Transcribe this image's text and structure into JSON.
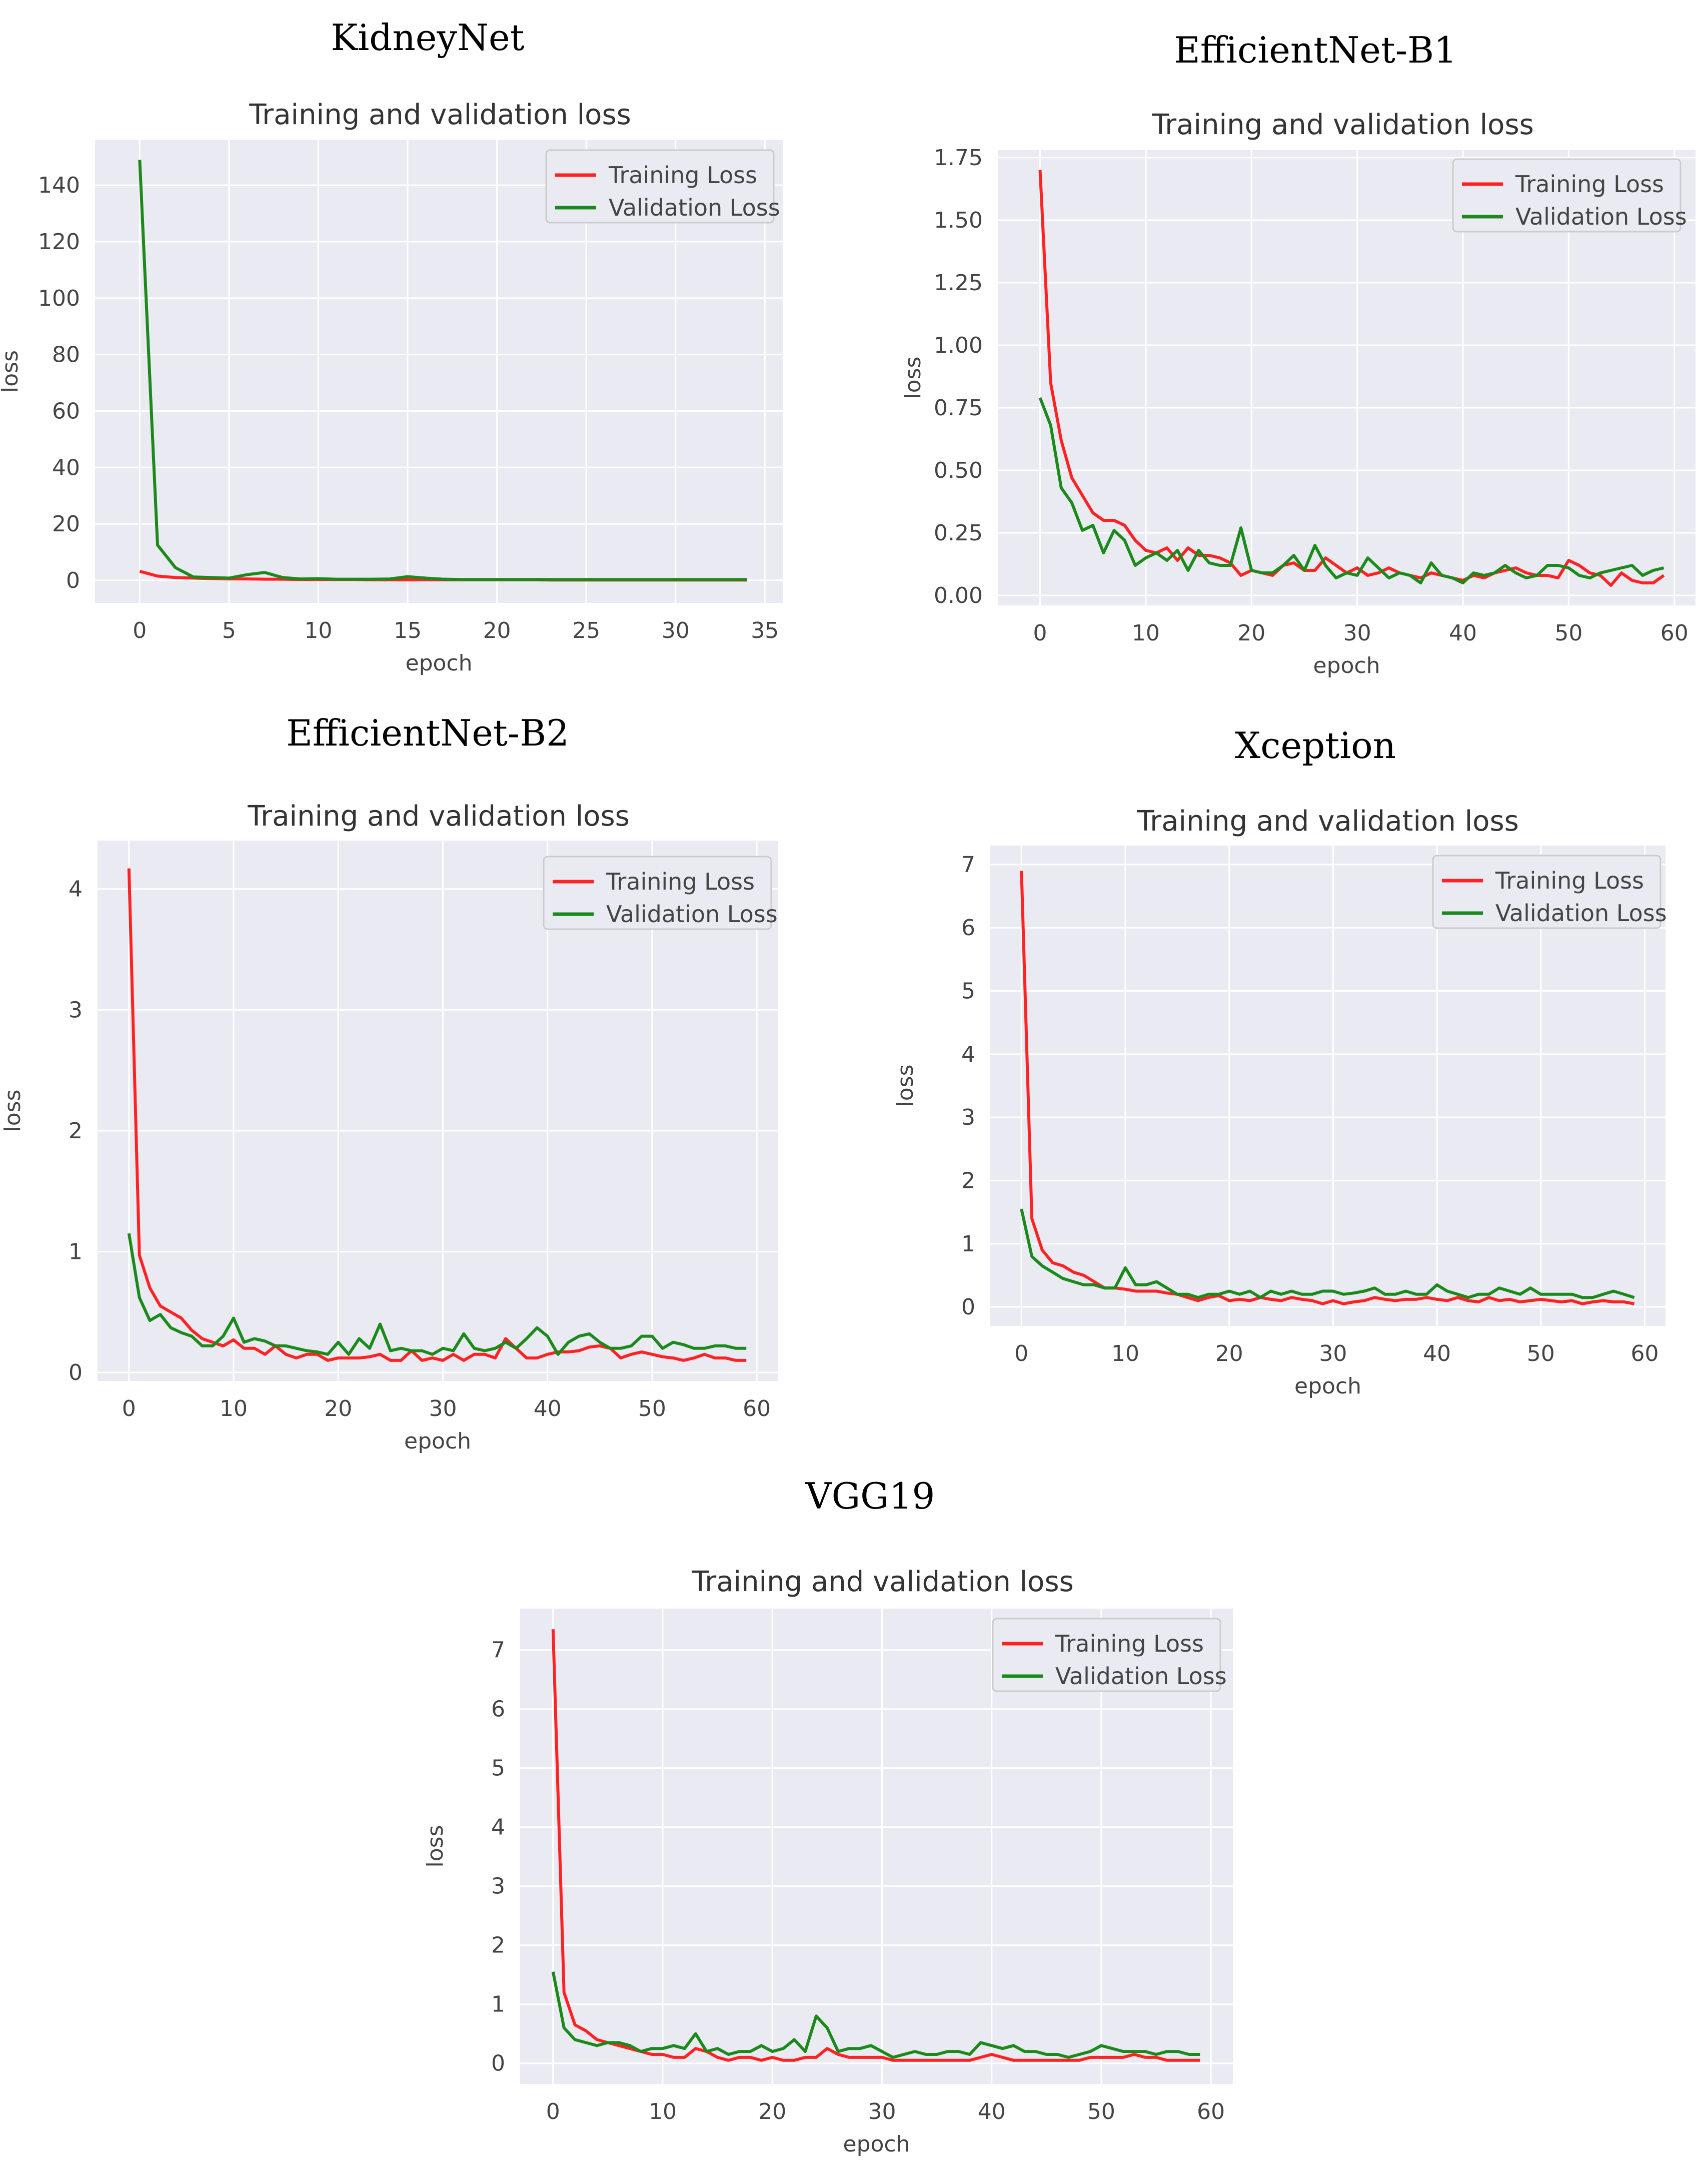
{
  "colors": {
    "training": "#ff2222",
    "validation": "#1a8a1a",
    "plot_bg": "#eaeaf2"
  },
  "chart_data": [
    {
      "type": "line",
      "model_title": "KidneyNet",
      "title": "Training and validation loss",
      "xlabel": "epoch",
      "ylabel": "loss",
      "xlim": [
        -2.5,
        36
      ],
      "ylim": [
        -8,
        156
      ],
      "xticks": [
        0,
        5,
        10,
        15,
        20,
        25,
        30,
        35
      ],
      "yticks": [
        0,
        20,
        40,
        60,
        80,
        100,
        120,
        140
      ],
      "tick_labels_x": [
        "0",
        "5",
        "10",
        "15",
        "20",
        "25",
        "30",
        "35"
      ],
      "tick_labels_y": [
        "0",
        "20",
        "40",
        "60",
        "80",
        "100",
        "120",
        "140"
      ],
      "legend": [
        "Training Loss",
        "Validation Loss"
      ],
      "series": [
        {
          "name": "Training Loss",
          "values": [
            3.2,
            1.5,
            1.0,
            0.8,
            0.6,
            0.5,
            0.5,
            0.4,
            0.4,
            0.3,
            0.3,
            0.3,
            0.3,
            0.2,
            0.2,
            0.2,
            0.2,
            0.2,
            0.2,
            0.2,
            0.2,
            0.2,
            0.2,
            0.1,
            0.1,
            0.1,
            0.1,
            0.1,
            0.1,
            0.1,
            0.1,
            0.1,
            0.1,
            0.1,
            0.1
          ]
        },
        {
          "name": "Validation Loss",
          "values": [
            149,
            12.5,
            4.5,
            1.2,
            1.0,
            0.8,
            2.0,
            2.8,
            1.0,
            0.5,
            0.6,
            0.4,
            0.4,
            0.4,
            0.5,
            1.3,
            0.8,
            0.4,
            0.3,
            0.3,
            0.3,
            0.3,
            0.3,
            0.3,
            0.3,
            0.3,
            0.3,
            0.3,
            0.3,
            0.3,
            0.3,
            0.3,
            0.3,
            0.3,
            0.3
          ]
        }
      ]
    },
    {
      "type": "line",
      "model_title": "EfficientNet-B1",
      "title": "Training and validation loss",
      "xlabel": "epoch",
      "ylabel": "loss",
      "xlim": [
        -4,
        62
      ],
      "ylim": [
        -0.04,
        1.78
      ],
      "xticks": [
        0,
        10,
        20,
        30,
        40,
        50,
        60
      ],
      "yticks": [
        0.0,
        0.25,
        0.5,
        0.75,
        1.0,
        1.25,
        1.5,
        1.75
      ],
      "tick_labels_x": [
        "0",
        "10",
        "20",
        "30",
        "40",
        "50",
        "60"
      ],
      "tick_labels_y": [
        "0.00",
        "0.25",
        "0.50",
        "0.75",
        "1.00",
        "1.25",
        "1.50",
        "1.75"
      ],
      "legend": [
        "Training Loss",
        "Validation Loss"
      ],
      "series": [
        {
          "name": "Training Loss",
          "values": [
            1.7,
            0.85,
            0.62,
            0.47,
            0.4,
            0.33,
            0.3,
            0.3,
            0.28,
            0.22,
            0.18,
            0.17,
            0.19,
            0.14,
            0.19,
            0.16,
            0.16,
            0.15,
            0.13,
            0.08,
            0.1,
            0.09,
            0.08,
            0.12,
            0.13,
            0.1,
            0.1,
            0.15,
            0.12,
            0.09,
            0.11,
            0.08,
            0.09,
            0.11,
            0.09,
            0.08,
            0.07,
            0.09,
            0.08,
            0.07,
            0.06,
            0.08,
            0.07,
            0.09,
            0.1,
            0.11,
            0.09,
            0.08,
            0.08,
            0.07,
            0.14,
            0.12,
            0.09,
            0.08,
            0.04,
            0.09,
            0.06,
            0.05,
            0.05,
            0.08
          ]
        },
        {
          "name": "Validation Loss",
          "values": [
            0.79,
            0.68,
            0.43,
            0.37,
            0.26,
            0.28,
            0.17,
            0.26,
            0.22,
            0.12,
            0.15,
            0.17,
            0.14,
            0.18,
            0.1,
            0.18,
            0.13,
            0.12,
            0.12,
            0.27,
            0.1,
            0.09,
            0.09,
            0.12,
            0.16,
            0.1,
            0.2,
            0.12,
            0.07,
            0.09,
            0.08,
            0.15,
            0.11,
            0.07,
            0.09,
            0.08,
            0.05,
            0.13,
            0.08,
            0.07,
            0.05,
            0.09,
            0.08,
            0.09,
            0.12,
            0.09,
            0.07,
            0.08,
            0.12,
            0.12,
            0.11,
            0.08,
            0.07,
            0.09,
            0.1,
            0.11,
            0.12,
            0.08,
            0.1,
            0.11
          ]
        }
      ]
    },
    {
      "type": "line",
      "model_title": "EfficientNet-B2",
      "title": "Training and validation loss",
      "xlabel": "epoch",
      "ylabel": "loss",
      "xlim": [
        -3,
        62
      ],
      "ylim": [
        -0.07,
        4.4
      ],
      "xticks": [
        0,
        10,
        20,
        30,
        40,
        50,
        60
      ],
      "yticks": [
        0,
        1,
        2,
        3,
        4
      ],
      "tick_labels_x": [
        "0",
        "10",
        "20",
        "30",
        "40",
        "50",
        "60"
      ],
      "tick_labels_y": [
        "0",
        "1",
        "2",
        "3",
        "4"
      ],
      "legend": [
        "Training Loss",
        "Validation Loss"
      ],
      "series": [
        {
          "name": "Training Loss",
          "values": [
            4.17,
            0.97,
            0.7,
            0.55,
            0.5,
            0.45,
            0.35,
            0.28,
            0.25,
            0.22,
            0.27,
            0.2,
            0.2,
            0.15,
            0.22,
            0.15,
            0.12,
            0.15,
            0.15,
            0.1,
            0.12,
            0.12,
            0.12,
            0.13,
            0.15,
            0.1,
            0.1,
            0.18,
            0.1,
            0.12,
            0.1,
            0.15,
            0.1,
            0.15,
            0.15,
            0.12,
            0.28,
            0.2,
            0.12,
            0.12,
            0.15,
            0.17,
            0.17,
            0.18,
            0.21,
            0.22,
            0.2,
            0.12,
            0.15,
            0.17,
            0.15,
            0.13,
            0.12,
            0.1,
            0.12,
            0.15,
            0.12,
            0.12,
            0.1,
            0.1
          ]
        },
        {
          "name": "Validation Loss",
          "values": [
            1.15,
            0.62,
            0.43,
            0.48,
            0.37,
            0.33,
            0.3,
            0.22,
            0.22,
            0.3,
            0.45,
            0.25,
            0.28,
            0.26,
            0.22,
            0.22,
            0.2,
            0.18,
            0.17,
            0.15,
            0.25,
            0.15,
            0.28,
            0.2,
            0.4,
            0.18,
            0.2,
            0.18,
            0.18,
            0.15,
            0.2,
            0.18,
            0.32,
            0.2,
            0.18,
            0.2,
            0.25,
            0.2,
            0.28,
            0.37,
            0.3,
            0.15,
            0.25,
            0.3,
            0.32,
            0.25,
            0.2,
            0.2,
            0.22,
            0.3,
            0.3,
            0.2,
            0.25,
            0.23,
            0.2,
            0.2,
            0.22,
            0.22,
            0.2,
            0.2
          ]
        }
      ]
    },
    {
      "type": "line",
      "model_title": "Xception",
      "title": "Training and validation loss",
      "xlabel": "epoch",
      "ylabel": "loss",
      "xlim": [
        -3,
        62
      ],
      "ylim": [
        -0.3,
        7.3
      ],
      "xticks": [
        0,
        10,
        20,
        30,
        40,
        50,
        60
      ],
      "yticks": [
        0,
        1,
        2,
        3,
        4,
        5,
        6,
        7
      ],
      "tick_labels_x": [
        "0",
        "10",
        "20",
        "30",
        "40",
        "50",
        "60"
      ],
      "tick_labels_y": [
        "0",
        "1",
        "2",
        "3",
        "4",
        "5",
        "6",
        "7"
      ],
      "legend": [
        "Training Loss",
        "Validation Loss"
      ],
      "series": [
        {
          "name": "Training Loss",
          "values": [
            6.9,
            1.4,
            0.9,
            0.7,
            0.65,
            0.55,
            0.5,
            0.4,
            0.3,
            0.3,
            0.28,
            0.25,
            0.25,
            0.25,
            0.22,
            0.2,
            0.15,
            0.1,
            0.15,
            0.18,
            0.1,
            0.12,
            0.1,
            0.15,
            0.12,
            0.1,
            0.15,
            0.12,
            0.1,
            0.05,
            0.1,
            0.05,
            0.08,
            0.1,
            0.15,
            0.12,
            0.1,
            0.12,
            0.12,
            0.15,
            0.12,
            0.1,
            0.15,
            0.1,
            0.08,
            0.15,
            0.1,
            0.12,
            0.08,
            0.1,
            0.12,
            0.1,
            0.08,
            0.1,
            0.05,
            0.08,
            0.1,
            0.08,
            0.08,
            0.05
          ]
        },
        {
          "name": "Validation Loss",
          "values": [
            1.55,
            0.8,
            0.65,
            0.55,
            0.45,
            0.4,
            0.35,
            0.35,
            0.3,
            0.3,
            0.62,
            0.35,
            0.35,
            0.4,
            0.3,
            0.2,
            0.2,
            0.15,
            0.2,
            0.2,
            0.25,
            0.2,
            0.25,
            0.15,
            0.25,
            0.2,
            0.25,
            0.2,
            0.2,
            0.25,
            0.25,
            0.2,
            0.22,
            0.25,
            0.3,
            0.2,
            0.2,
            0.25,
            0.2,
            0.2,
            0.35,
            0.25,
            0.2,
            0.15,
            0.2,
            0.2,
            0.3,
            0.25,
            0.2,
            0.3,
            0.2,
            0.2,
            0.2,
            0.2,
            0.15,
            0.15,
            0.2,
            0.25,
            0.2,
            0.15
          ]
        }
      ]
    },
    {
      "type": "line",
      "model_title": "VGG19",
      "title": "Training and validation loss",
      "xlabel": "epoch",
      "ylabel": "loss",
      "xlim": [
        -3,
        62
      ],
      "ylim": [
        -0.35,
        7.7
      ],
      "xticks": [
        0,
        10,
        20,
        30,
        40,
        50,
        60
      ],
      "yticks": [
        0,
        1,
        2,
        3,
        4,
        5,
        6,
        7
      ],
      "tick_labels_x": [
        "0",
        "10",
        "20",
        "30",
        "40",
        "50",
        "60"
      ],
      "tick_labels_y": [
        "0",
        "1",
        "2",
        "3",
        "4",
        "5",
        "6",
        "7"
      ],
      "legend": [
        "Training Loss",
        "Validation Loss"
      ],
      "series": [
        {
          "name": "Training Loss",
          "values": [
            7.35,
            1.2,
            0.65,
            0.55,
            0.4,
            0.35,
            0.3,
            0.25,
            0.2,
            0.15,
            0.15,
            0.1,
            0.1,
            0.25,
            0.2,
            0.1,
            0.05,
            0.1,
            0.1,
            0.05,
            0.1,
            0.05,
            0.05,
            0.1,
            0.1,
            0.25,
            0.15,
            0.1,
            0.1,
            0.1,
            0.1,
            0.05,
            0.05,
            0.05,
            0.05,
            0.05,
            0.05,
            0.05,
            0.05,
            0.1,
            0.15,
            0.1,
            0.05,
            0.05,
            0.05,
            0.05,
            0.05,
            0.05,
            0.05,
            0.1,
            0.1,
            0.1,
            0.1,
            0.15,
            0.1,
            0.1,
            0.05,
            0.05,
            0.05,
            0.05
          ]
        },
        {
          "name": "Validation Loss",
          "values": [
            1.55,
            0.6,
            0.4,
            0.35,
            0.3,
            0.35,
            0.35,
            0.3,
            0.2,
            0.25,
            0.25,
            0.3,
            0.25,
            0.5,
            0.2,
            0.25,
            0.15,
            0.2,
            0.2,
            0.3,
            0.2,
            0.25,
            0.4,
            0.2,
            0.8,
            0.6,
            0.2,
            0.25,
            0.25,
            0.3,
            0.2,
            0.1,
            0.15,
            0.2,
            0.15,
            0.15,
            0.2,
            0.2,
            0.15,
            0.35,
            0.3,
            0.25,
            0.3,
            0.2,
            0.2,
            0.15,
            0.15,
            0.1,
            0.15,
            0.2,
            0.3,
            0.25,
            0.2,
            0.2,
            0.2,
            0.15,
            0.2,
            0.2,
            0.15,
            0.15
          ]
        }
      ]
    }
  ]
}
